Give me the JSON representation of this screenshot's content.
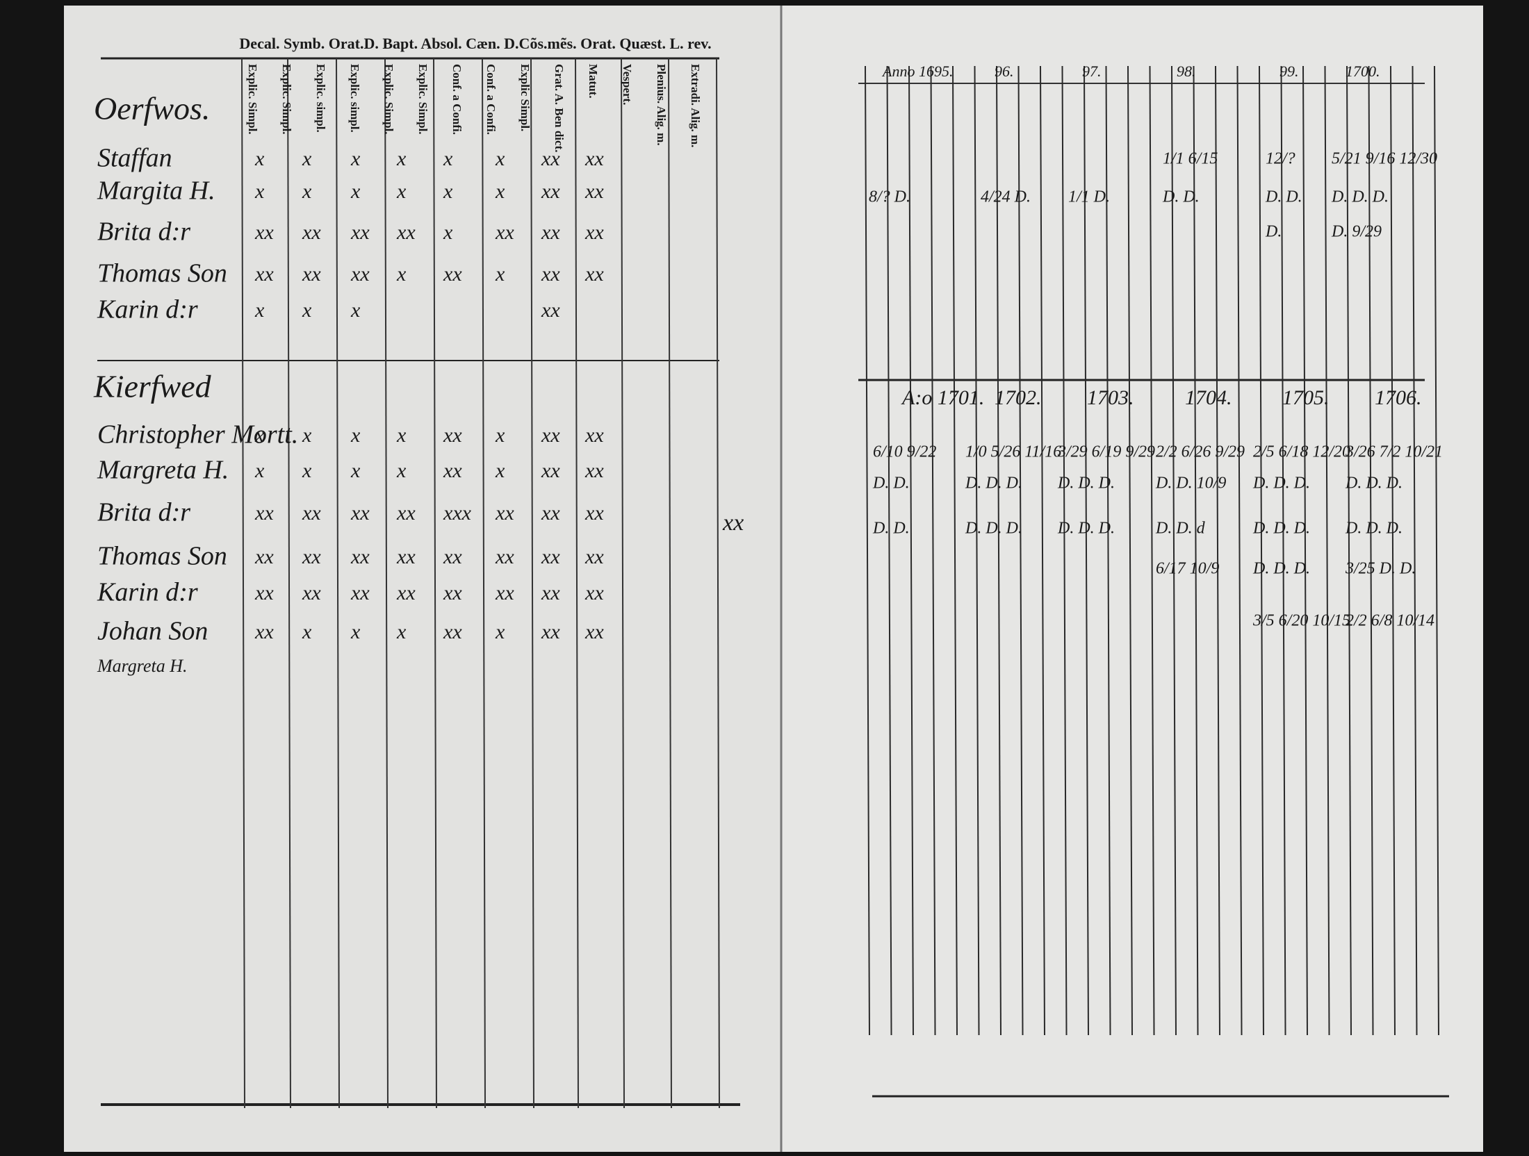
{
  "left_page": {
    "header": "Decal. Symb. Orat.D. Bapt. Absol. Cæn. D.Cõs.mẽs. Orat. Quæst. L. rev.",
    "column_labels": [
      "Explic. Simpl.",
      "Explic. Simpl.",
      "Explic. simpl.",
      "Explic. simpl.",
      "Explic. Simpl.",
      "Explic. Simpl.",
      "Conf. a Confi.",
      "Conf. a Confi.",
      "Explic Simpl.",
      "Grat. A. Ben dict.",
      "Matut.",
      "Vespert.",
      "Plenius. Alig. m.",
      "Extradi. Alig. m."
    ],
    "groups": [
      {
        "label": "Oerfwos.",
        "rows": [
          {
            "name": "Staffan",
            "marks": [
              "x",
              "x",
              "x",
              "x",
              "x",
              "x",
              "xx",
              "xx"
            ]
          },
          {
            "name": "Margita H.",
            "marks": [
              "x",
              "x",
              "x",
              "x",
              "x",
              "x",
              "xx",
              "xx"
            ]
          },
          {
            "name": "Brita d:r",
            "marks": [
              "xx",
              "xx",
              "xx",
              "xx",
              "x",
              "xx",
              "xx",
              "xx"
            ]
          },
          {
            "name": "Thomas Son",
            "marks": [
              "xx",
              "xx",
              "xx",
              "x",
              "xx",
              "x",
              "xx",
              "xx"
            ]
          },
          {
            "name": "Karin d:r",
            "marks": [
              "x",
              "x",
              "x",
              null,
              null,
              null,
              "xx",
              null
            ]
          }
        ]
      },
      {
        "label": "Kierfwed",
        "rows": [
          {
            "name": "Christopher Mortt.",
            "marks": [
              "x",
              "x",
              "x",
              "x",
              "xx",
              "x",
              "xx",
              "xx"
            ]
          },
          {
            "name": "Margreta H.",
            "marks": [
              "x",
              "x",
              "x",
              "x",
              "xx",
              "x",
              "xx",
              "xx"
            ]
          },
          {
            "name": "Brita d:r",
            "marks": [
              "xx",
              "xx",
              "xx",
              "xx",
              "xxx",
              "xx",
              "xx",
              "xx"
            ]
          },
          {
            "name": "Thomas Son",
            "marks": [
              "xx",
              "xx",
              "xx",
              "xx",
              "xx",
              "xx",
              "xx",
              "xx"
            ]
          },
          {
            "name": "Karin d:r",
            "marks": [
              "xx",
              "xx",
              "xx",
              "xx",
              "xx",
              "xx",
              "xx",
              "xx"
            ]
          },
          {
            "name": "Johan Son",
            "marks": [
              "xx",
              "x",
              "x",
              "x",
              "xx",
              "x",
              "xx",
              "xx"
            ]
          },
          {
            "name": "Margreta H.",
            "marks": [
              null,
              null,
              null,
              null,
              null,
              null,
              null,
              null
            ]
          }
        ]
      }
    ],
    "margin_mark": "xx"
  },
  "right_page": {
    "top_years": [
      "Anno 1695.",
      "96.",
      "97.",
      "98.",
      "99.",
      "1700."
    ],
    "top_rows": [
      [
        null,
        null,
        null,
        "1/1 6/15",
        "12/?",
        "5/21 9/16 12/30"
      ],
      [
        "8/? D.",
        "4/24 D.",
        "1/1 D.",
        "D. D.",
        "D. D.",
        "D. D. D."
      ],
      [
        null,
        null,
        null,
        null,
        "D.",
        "D. 9/29"
      ]
    ],
    "bottom_years": [
      "A:o 1701.",
      "1702.",
      "1703.",
      "1704.",
      "1705.",
      "1706."
    ],
    "bottom_rows": [
      [
        "6/10 9/22",
        "1/0 5/26 11/16",
        "3/29 6/19 9/29",
        "2/2 6/26 9/29",
        "2/5 6/18 12/20",
        "3/26 7/2 10/21"
      ],
      [
        "D. D.",
        "D. D. D.",
        "D. D. D.",
        "D. D. 10/9",
        "D. D. D.",
        "D. D. D."
      ],
      [
        "D. D.",
        "D. D. D.",
        "D. D. D.",
        "D. D. d",
        "D. D. D.",
        "D. D. D."
      ],
      [
        null,
        null,
        null,
        "6/17 10/9",
        "D. D. D.",
        "3/25 D. D."
      ],
      [
        null,
        null,
        null,
        null,
        "3/5 6/20 10/15",
        "2/2 6/8 10/14"
      ]
    ]
  }
}
